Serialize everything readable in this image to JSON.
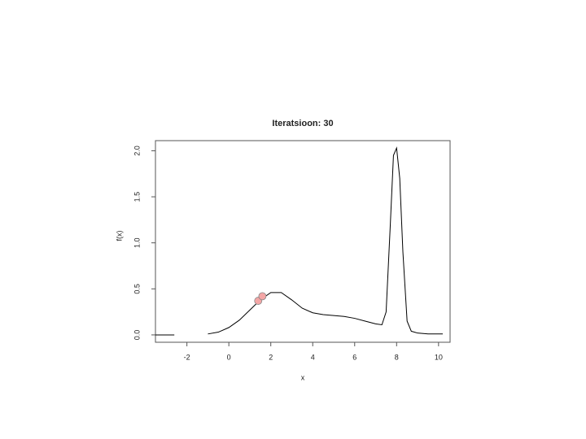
{
  "chart_data": {
    "type": "line",
    "title": "Iteratsioon: 30",
    "x_label": "x",
    "y_label": "f(x)",
    "xlim": [
      -3.5,
      10.55
    ],
    "ylim": [
      -0.08,
      2.11
    ],
    "xticks": [
      -2,
      0,
      2,
      4,
      6,
      8,
      10
    ],
    "yticks": [
      {
        "value": 0,
        "label": "0.0"
      },
      {
        "value": 0.5,
        "label": "0.5"
      },
      {
        "value": 1,
        "label": "1.0"
      },
      {
        "value": 1.5,
        "label": "1.5"
      },
      {
        "value": 2,
        "label": "2.0"
      }
    ],
    "series": [
      {
        "type": "line",
        "color": "#000000",
        "x": [
          -3.5,
          -2.6,
          -2.0,
          -1,
          -0.5,
          0,
          0.5,
          1,
          1.5,
          2,
          2.5,
          3,
          3.5,
          4,
          4.5,
          5,
          5.5,
          6,
          6.5,
          7,
          7.3,
          7.5,
          7.7,
          7.85,
          8,
          8.15,
          8.3,
          8.5,
          8.7,
          9,
          9.5,
          10.2
        ],
        "values": [
          0,
          0,
          null,
          0.01,
          0.03,
          0.08,
          0.16,
          0.27,
          0.38,
          0.46,
          0.46,
          0.38,
          0.29,
          0.24,
          0.22,
          0.21,
          0.2,
          0.18,
          0.15,
          0.12,
          0.11,
          0.25,
          1.2,
          1.95,
          2.03,
          1.7,
          0.9,
          0.15,
          0.04,
          0.02,
          0.01,
          0.01
        ]
      },
      {
        "type": "scatter",
        "color": "#f4a6a6",
        "x": [
          1.4,
          1.6
        ],
        "values": [
          0.37,
          0.42
        ]
      }
    ]
  }
}
